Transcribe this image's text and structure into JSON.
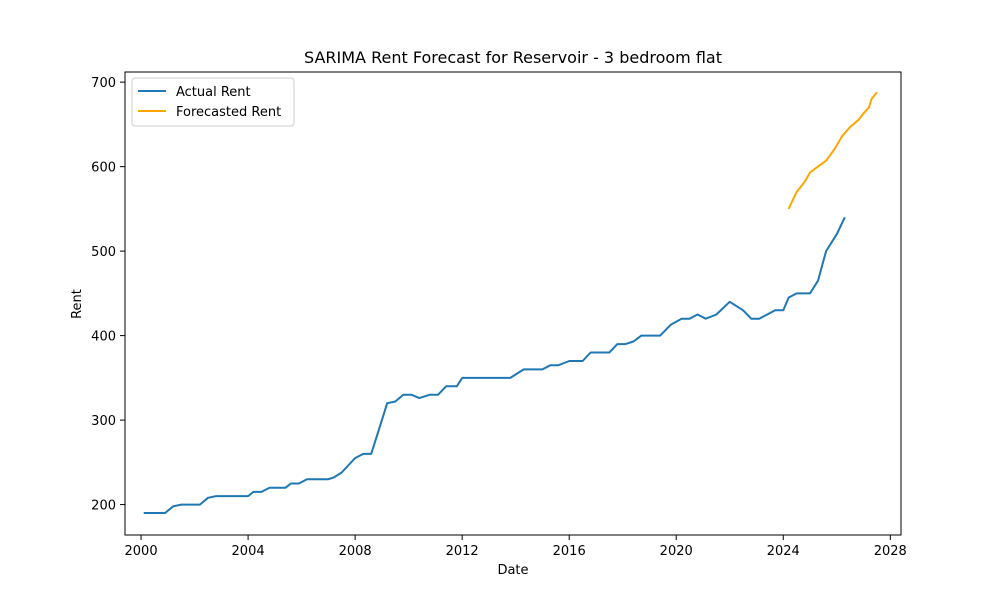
{
  "chart_data": {
    "type": "line",
    "title": "SARIMA Rent Forecast for Reservoir - 3 bedroom flat",
    "xlabel": "Date",
    "ylabel": "Rent",
    "xlim": [
      1999.4,
      2028.4
    ],
    "ylim": [
      164,
      712
    ],
    "x_ticks": [
      2000,
      2004,
      2008,
      2012,
      2016,
      2020,
      2024,
      2028
    ],
    "x_tick_labels": [
      "2000",
      "2004",
      "2008",
      "2012",
      "2016",
      "2020",
      "2024",
      "2028"
    ],
    "y_ticks": [
      200,
      300,
      400,
      500,
      600,
      700
    ],
    "y_tick_labels": [
      "200",
      "300",
      "400",
      "500",
      "600",
      "700"
    ],
    "grid": false,
    "legend": "top-left",
    "series": [
      {
        "name": "Actual Rent",
        "color": "#1f77b4",
        "points": [
          [
            2000.1,
            190
          ],
          [
            2000.9,
            190
          ],
          [
            2001.2,
            198
          ],
          [
            2001.5,
            200
          ],
          [
            2002.2,
            200
          ],
          [
            2002.5,
            208
          ],
          [
            2002.8,
            210
          ],
          [
            2003.2,
            210
          ],
          [
            2003.5,
            210
          ],
          [
            2004.0,
            210
          ],
          [
            2004.2,
            215
          ],
          [
            2004.5,
            215
          ],
          [
            2004.8,
            220
          ],
          [
            2005.2,
            220
          ],
          [
            2005.4,
            220
          ],
          [
            2005.6,
            225
          ],
          [
            2005.9,
            225
          ],
          [
            2006.2,
            230
          ],
          [
            2006.6,
            230
          ],
          [
            2007.0,
            230
          ],
          [
            2007.2,
            232
          ],
          [
            2007.5,
            238
          ],
          [
            2008.0,
            255
          ],
          [
            2008.3,
            260
          ],
          [
            2008.6,
            260
          ],
          [
            2009.0,
            300
          ],
          [
            2009.2,
            320
          ],
          [
            2009.5,
            322
          ],
          [
            2009.8,
            330
          ],
          [
            2010.1,
            330
          ],
          [
            2010.4,
            326
          ],
          [
            2010.8,
            330
          ],
          [
            2011.1,
            330
          ],
          [
            2011.4,
            340
          ],
          [
            2011.8,
            340
          ],
          [
            2012.0,
            350
          ],
          [
            2012.5,
            350
          ],
          [
            2013.0,
            350
          ],
          [
            2013.5,
            350
          ],
          [
            2013.8,
            350
          ],
          [
            2014.3,
            360
          ],
          [
            2014.6,
            360
          ],
          [
            2015.0,
            360
          ],
          [
            2015.3,
            365
          ],
          [
            2015.6,
            365
          ],
          [
            2016.0,
            370
          ],
          [
            2016.5,
            370
          ],
          [
            2016.8,
            380
          ],
          [
            2017.2,
            380
          ],
          [
            2017.5,
            380
          ],
          [
            2017.8,
            390
          ],
          [
            2018.1,
            390
          ],
          [
            2018.4,
            393
          ],
          [
            2018.7,
            400
          ],
          [
            2019.0,
            400
          ],
          [
            2019.4,
            400
          ],
          [
            2019.8,
            413
          ],
          [
            2020.2,
            420
          ],
          [
            2020.5,
            420
          ],
          [
            2020.8,
            425
          ],
          [
            2021.1,
            420
          ],
          [
            2021.5,
            425
          ],
          [
            2022.0,
            440
          ],
          [
            2022.5,
            430
          ],
          [
            2022.8,
            420
          ],
          [
            2023.1,
            420
          ],
          [
            2023.4,
            425
          ],
          [
            2023.7,
            430
          ],
          [
            2024.0,
            430
          ],
          [
            2024.2,
            445
          ],
          [
            2024.5,
            450
          ],
          [
            2024.8,
            450
          ],
          [
            2025.0,
            450
          ],
          [
            2025.3,
            465
          ],
          [
            2025.6,
            500
          ],
          [
            2026.0,
            520
          ],
          [
            2026.3,
            540
          ]
        ]
      },
      {
        "name": "Forecasted Rent",
        "color": "#ffa500",
        "points": [
          [
            2024.2,
            550
          ],
          [
            2024.5,
            570
          ],
          [
            2024.8,
            582
          ],
          [
            2025.0,
            593
          ],
          [
            2025.3,
            600
          ],
          [
            2025.6,
            607
          ],
          [
            2025.9,
            620
          ],
          [
            2026.2,
            636
          ],
          [
            2026.5,
            647
          ],
          [
            2026.8,
            655
          ],
          [
            2027.0,
            663
          ],
          [
            2027.2,
            670
          ],
          [
            2027.3,
            680
          ],
          [
            2027.5,
            688
          ]
        ]
      }
    ]
  }
}
